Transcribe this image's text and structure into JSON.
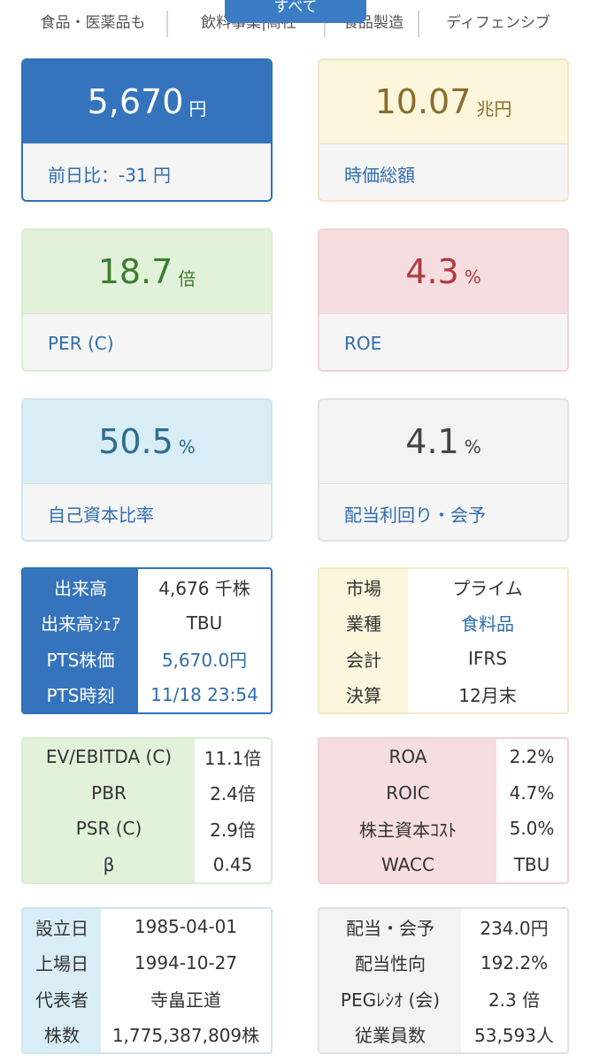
{
  "tabs": {
    "items": [
      "食品・医薬品も",
      "飲料事業|商社",
      "食品製造",
      "ディフェンシブ"
    ],
    "active": "すべて"
  },
  "cards": {
    "price": {
      "value": "5,670",
      "unit": "円",
      "label": "前日比：-31 円"
    },
    "market_cap": {
      "value": "10.07",
      "unit": "兆円",
      "label": "時価総額"
    },
    "per": {
      "value": "18.7",
      "unit": "倍",
      "label": "PER (C)"
    },
    "roe": {
      "value": "4.3",
      "unit": "%",
      "label": "ROE"
    },
    "equity_ratio": {
      "value": "50.5",
      "unit": "%",
      "label": "自己資本比率"
    },
    "dividend_yield": {
      "value": "4.1",
      "unit": "%",
      "label": "配当利回り・会予"
    }
  },
  "volume_table": {
    "rows": [
      {
        "key": "出来高",
        "value": "4,676 千株"
      },
      {
        "key": "出来高ｼｪｱ",
        "value": "TBU"
      },
      {
        "key": "PTS株価",
        "value": "5,670.0円"
      },
      {
        "key": "PTS時刻",
        "value": "11/18 23:54"
      }
    ]
  },
  "market_table": {
    "rows": [
      {
        "key": "市場",
        "value": "プライム"
      },
      {
        "key": "業種",
        "value": "食料品"
      },
      {
        "key": "会計",
        "value": "IFRS"
      },
      {
        "key": "決算",
        "value": "12月末"
      }
    ]
  },
  "valuation_table": {
    "rows": [
      {
        "key": "EV/EBITDA (C)",
        "value": "11.1倍"
      },
      {
        "key": "PBR",
        "value": "2.4倍"
      },
      {
        "key": "PSR (C)",
        "value": "2.9倍"
      },
      {
        "key": "β",
        "value": "0.45"
      }
    ]
  },
  "profit_table": {
    "rows": [
      {
        "key": "ROA",
        "value": "2.2%"
      },
      {
        "key": "ROIC",
        "value": "4.7%"
      },
      {
        "key": "株主資本ｺｽﾄ",
        "value": "5.0%"
      },
      {
        "key": "WACC",
        "value": "TBU"
      }
    ]
  },
  "corporate_table": {
    "rows": [
      {
        "key": "設立日",
        "value": "1985-04-01"
      },
      {
        "key": "上場日",
        "value": "1994-10-27"
      },
      {
        "key": "代表者",
        "value": "寺畠正道"
      },
      {
        "key": "株数",
        "value": "1,775,387,809株"
      }
    ]
  },
  "dividend_table": {
    "rows": [
      {
        "key": "配当・会予",
        "value": "234.0円"
      },
      {
        "key": "配当性向",
        "value": "192.2%"
      },
      {
        "key": "PEGﾚｼｵ (会)",
        "value": "2.3 倍"
      },
      {
        "key": "従業員数",
        "value": "53,593人"
      }
    ]
  },
  "colors": {
    "blue": "#3574bd",
    "link": "#2f6db0",
    "cap": "#8a6d2c",
    "per": "#3a7d2e",
    "roe": "#b2393c",
    "equity": "#2c6e8e"
  }
}
